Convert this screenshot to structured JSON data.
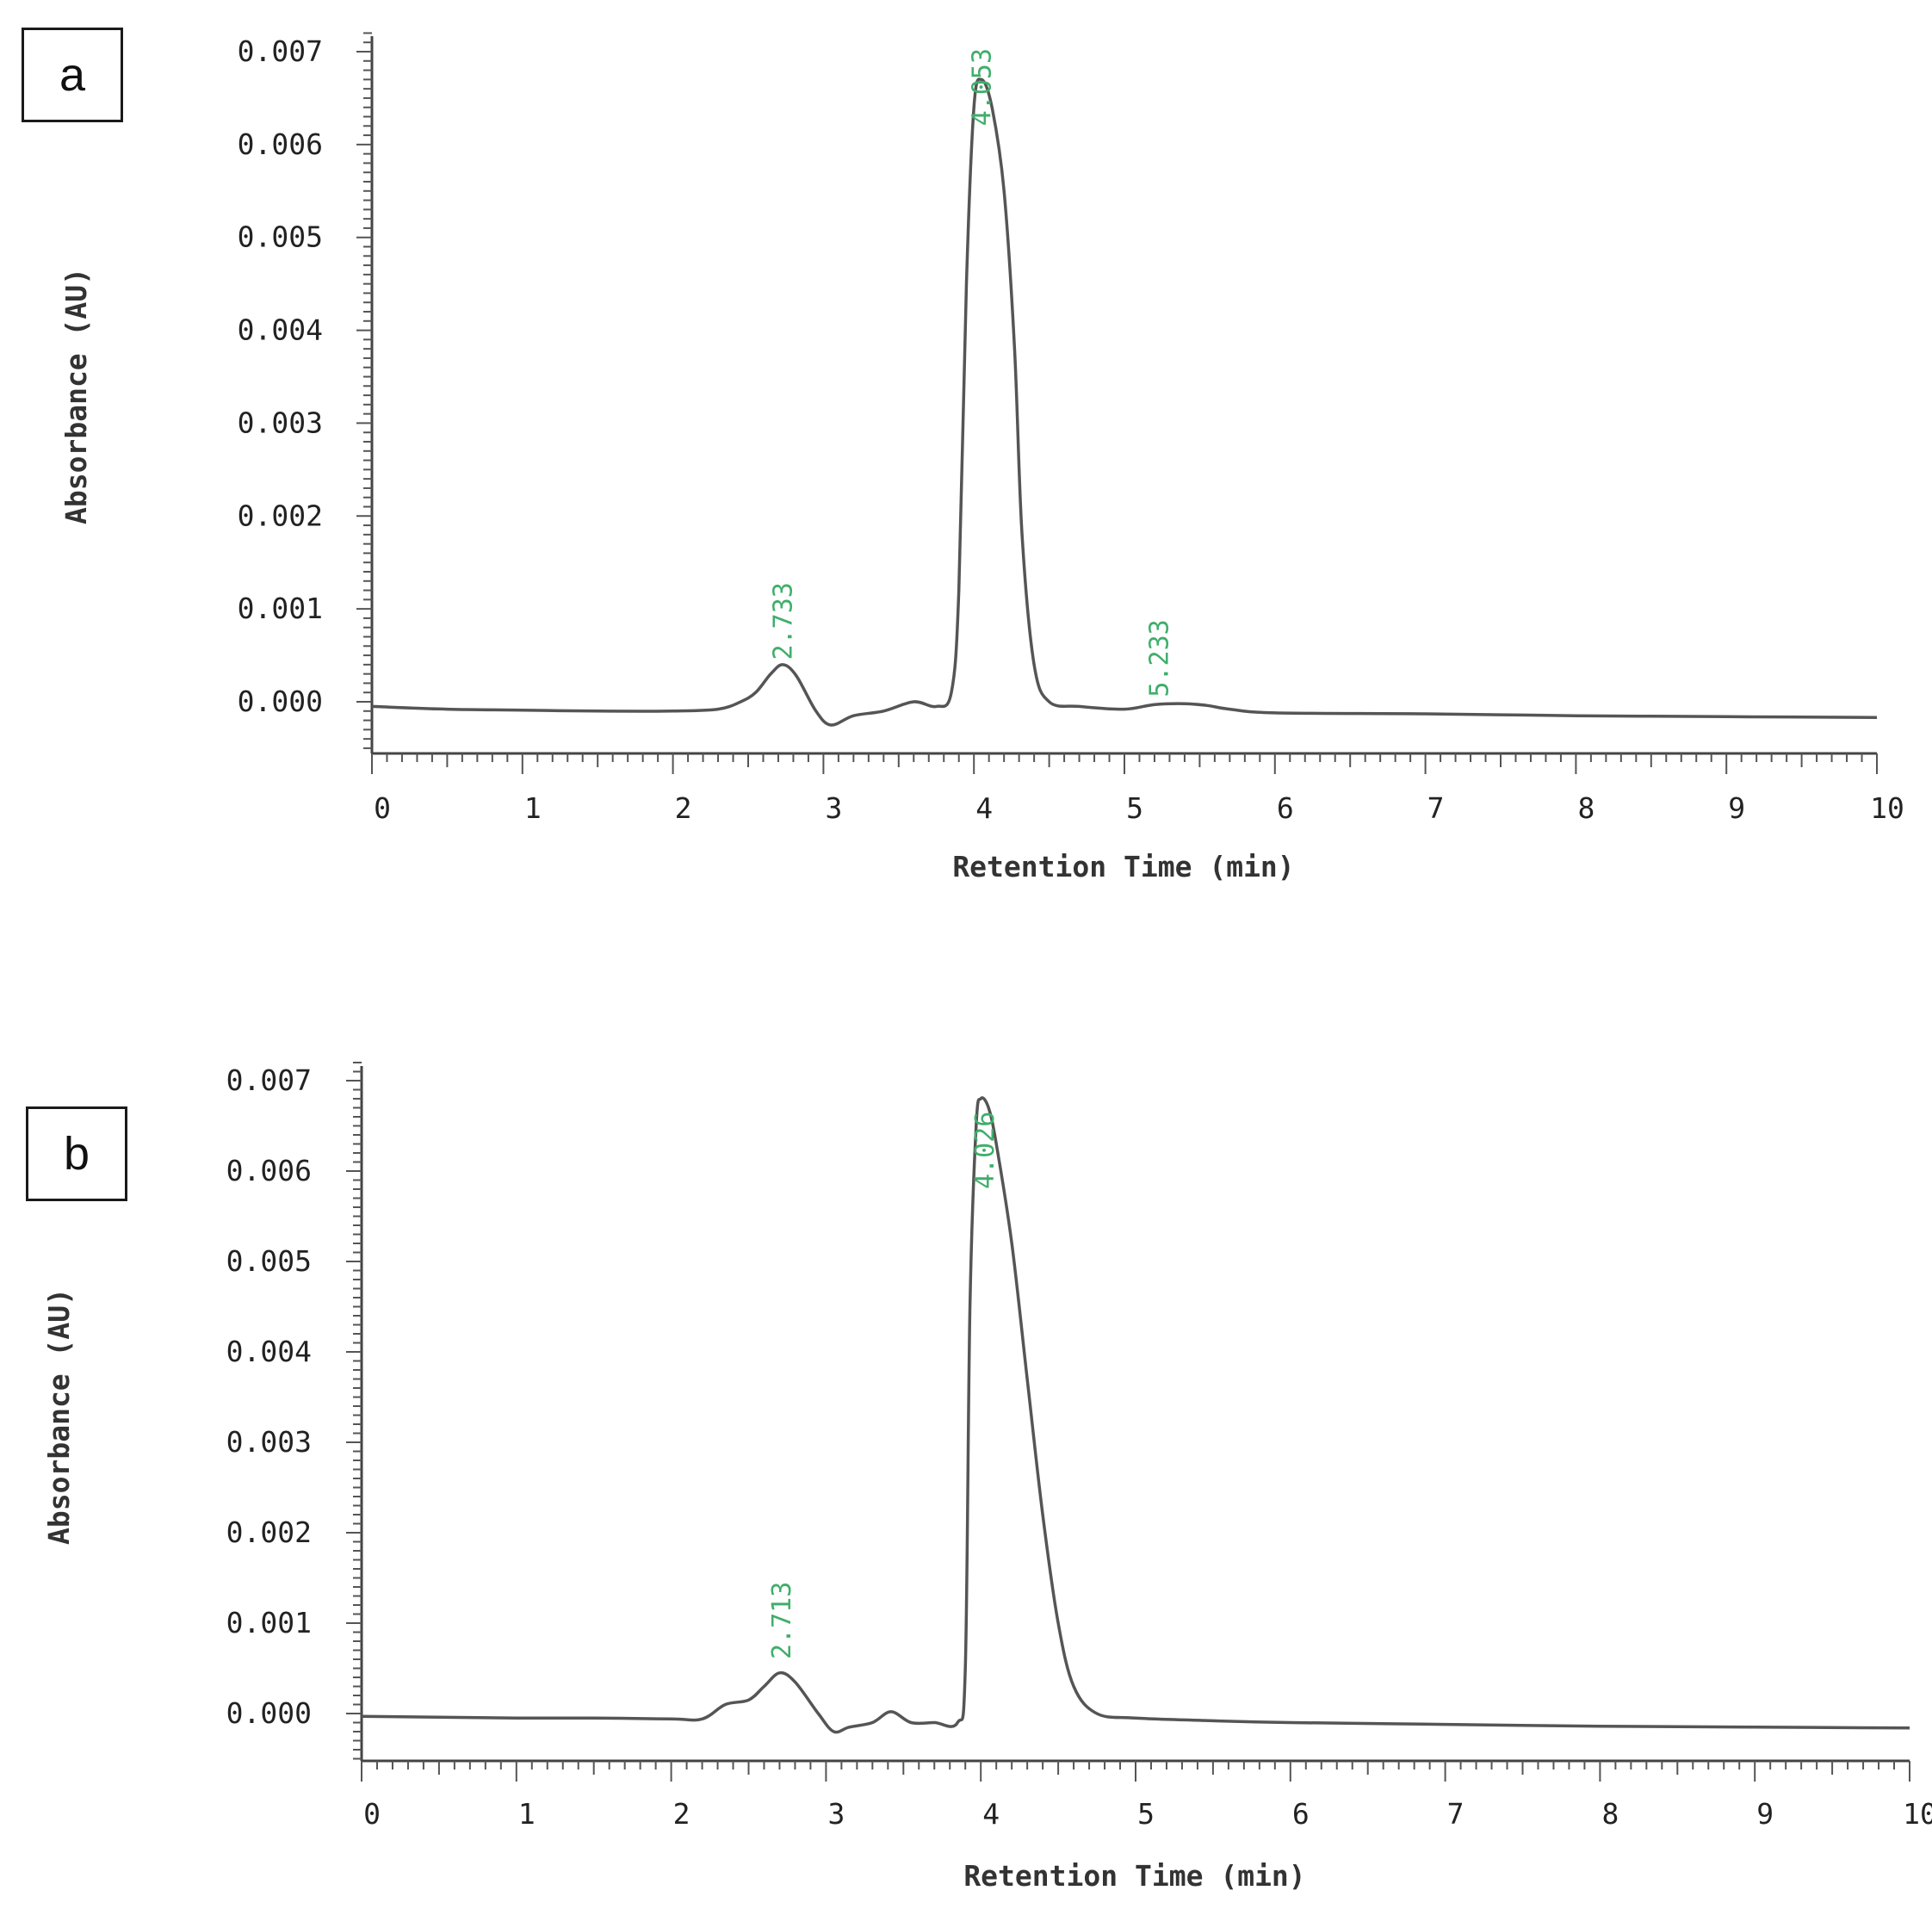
{
  "chart_data": [
    {
      "type": "line",
      "panel_label": "a",
      "xlabel": "Retention Time (min)",
      "ylabel": "Absorbance (AU)",
      "xlim": [
        0,
        10
      ],
      "ylim": [
        -0.0005,
        0.0072
      ],
      "x_ticks": [
        "0",
        "1",
        "2",
        "3",
        "4",
        "5",
        "6",
        "7",
        "8",
        "9",
        "10"
      ],
      "y_ticks": [
        "0.000",
        "0.001",
        "0.002",
        "0.003",
        "0.004",
        "0.005",
        "0.006",
        "0.007"
      ],
      "peak_labels": [
        {
          "label": "2.733",
          "x": 2.733,
          "y": 0.00045
        },
        {
          "label": "4.053",
          "x": 4.053,
          "y": 0.0062
        },
        {
          "label": "5.233",
          "x": 5.233,
          "y": 5e-05
        }
      ],
      "series": [
        {
          "color": "#555555",
          "x": [
            0,
            0.5,
            1.0,
            1.5,
            2.0,
            2.3,
            2.45,
            2.55,
            2.65,
            2.73,
            2.82,
            2.95,
            3.05,
            3.2,
            3.4,
            3.6,
            3.75,
            3.85,
            3.9,
            3.95,
            4.0,
            4.05,
            4.12,
            4.2,
            4.27,
            4.32,
            4.4,
            4.5,
            4.7,
            5.0,
            5.2,
            5.4,
            5.55,
            5.7,
            6.0,
            7.0,
            8.0,
            9.0,
            10.0
          ],
          "y": [
            -5e-05,
            -8e-05,
            -9e-05,
            -0.0001,
            -0.0001,
            -8e-05,
            0.0,
            0.0001,
            0.0003,
            0.0004,
            0.00028,
            -0.0001,
            -0.00025,
            -0.00015,
            -0.0001,
            0.0,
            -5e-05,
            0.0001,
            0.0012,
            0.0045,
            0.0064,
            0.0067,
            0.0064,
            0.0055,
            0.0038,
            0.0018,
            0.0004,
            0.0,
            -5e-05,
            -8e-05,
            -3e-05,
            -2e-05,
            -4e-05,
            -8e-05,
            -0.00012,
            -0.00013,
            -0.00015,
            -0.00016,
            -0.00017
          ]
        }
      ]
    },
    {
      "type": "line",
      "panel_label": "b",
      "xlabel": "Retention Time (min)",
      "ylabel": "Absorbance (AU)",
      "xlim": [
        0,
        10
      ],
      "ylim": [
        -0.0005,
        0.0072
      ],
      "x_ticks": [
        "0",
        "1",
        "2",
        "3",
        "4",
        "5",
        "6",
        "7",
        "8",
        "9",
        "10"
      ],
      "y_ticks": [
        "0.000",
        "0.001",
        "0.002",
        "0.003",
        "0.004",
        "0.005",
        "0.006",
        "0.007"
      ],
      "peak_labels": [
        {
          "label": "2.713",
          "x": 2.713,
          "y": 0.0006
        },
        {
          "label": "4.026",
          "x": 4.026,
          "y": 0.0058
        }
      ],
      "series": [
        {
          "color": "#555555",
          "x": [
            0,
            0.5,
            1.0,
            1.5,
            2.0,
            2.2,
            2.35,
            2.5,
            2.6,
            2.7,
            2.8,
            2.95,
            3.05,
            3.15,
            3.3,
            3.42,
            3.55,
            3.7,
            3.85,
            3.9,
            3.93,
            3.97,
            4.0,
            4.05,
            4.1,
            4.2,
            4.3,
            4.4,
            4.5,
            4.6,
            4.75,
            5.0,
            5.5,
            6.0,
            7.0,
            8.0,
            9.0,
            10.0
          ],
          "y": [
            -3e-05,
            -4e-05,
            -5e-05,
            -5e-05,
            -6e-05,
            -6e-05,
            0.0001,
            0.00015,
            0.0003,
            0.00045,
            0.00035,
            0.0,
            -0.0002,
            -0.00015,
            -0.0001,
            2e-05,
            -0.0001,
            -0.0001,
            -0.0001,
            0.0005,
            0.0045,
            0.0065,
            0.0068,
            0.0067,
            0.0063,
            0.0052,
            0.0037,
            0.0022,
            0.001,
            0.0003,
            0.0,
            -5e-05,
            -8e-05,
            -0.0001,
            -0.00012,
            -0.00014,
            -0.00015,
            -0.00016
          ]
        }
      ]
    }
  ]
}
